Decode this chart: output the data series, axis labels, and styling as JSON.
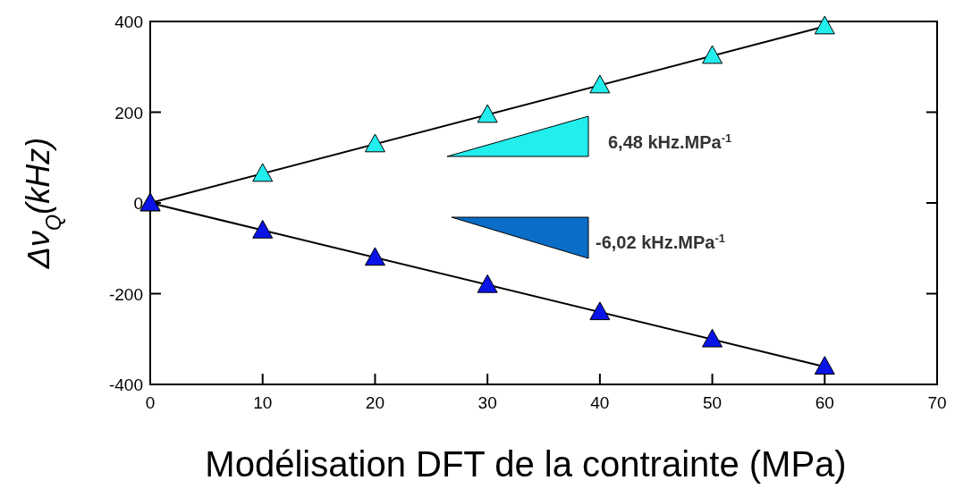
{
  "chart_data": {
    "type": "scatter",
    "xlabel": "Modélisation DFT de la contrainte (MPa)",
    "ylabel": "Δν$_{Q}$(kHz)",
    "xlim": [
      0,
      70
    ],
    "xticks": [
      0,
      10,
      20,
      30,
      40,
      50,
      60,
      70
    ],
    "ylim": [
      -400,
      400
    ],
    "yticks": [
      -400,
      -200,
      0,
      200,
      400
    ],
    "grid": false,
    "series": [
      {
        "type": "line",
        "color": "#000000",
        "x": [
          0,
          60
        ],
        "values": [
          0,
          389
        ]
      },
      {
        "type": "line",
        "color": "#000000",
        "x": [
          0,
          60
        ],
        "values": [
          0,
          -361
        ]
      },
      {
        "color": "#22eeee",
        "marker": "triangle",
        "x": [
          0,
          10,
          20,
          30,
          40,
          50,
          60
        ],
        "values": [
          0,
          65,
          130,
          195,
          260,
          325,
          390
        ]
      },
      {
        "color": "#0a14e6",
        "marker": "triangle",
        "x": [
          0,
          10,
          20,
          30,
          40,
          50,
          60
        ],
        "values": [
          0,
          -60,
          -120,
          -180,
          -240,
          -300,
          -360
        ]
      }
    ],
    "annotations": [
      "6,48 kHz.MPa$^{-1}$",
      "-6,02 kHz.MPa$^{-1}$"
    ]
  }
}
